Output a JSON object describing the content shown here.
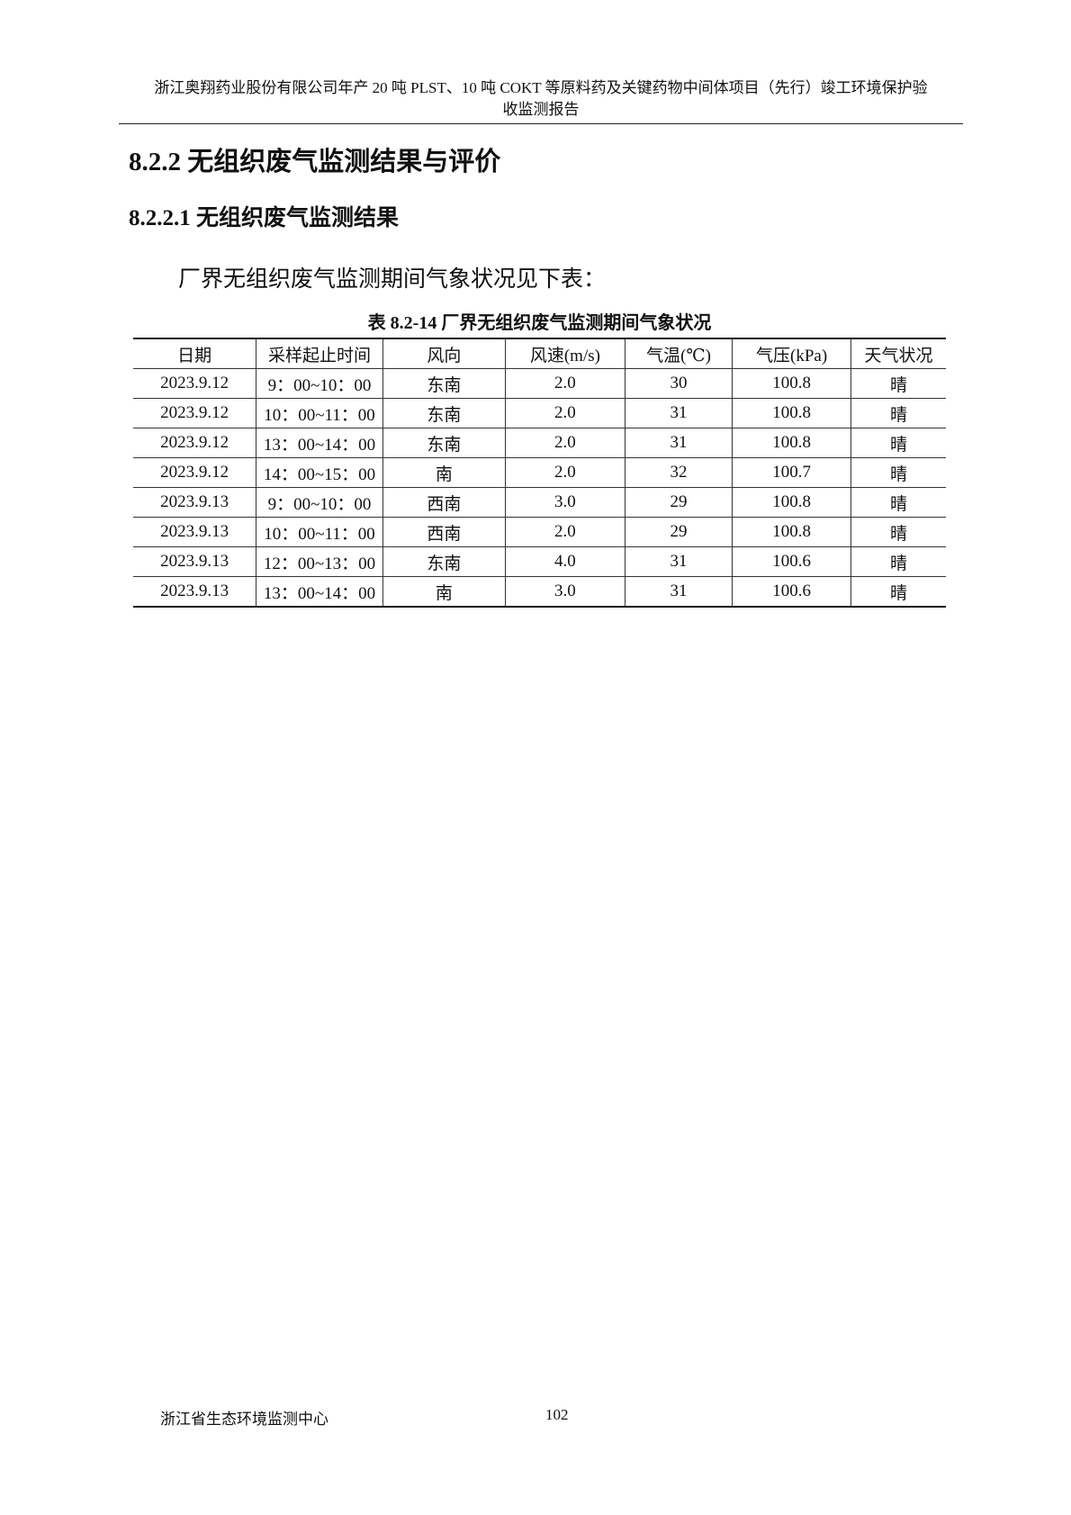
{
  "header": {
    "line1": "浙江奥翔药业股份有限公司年产 20 吨 PLST、10 吨 COKT 等原料药及关键药物中间体项目（先行）竣工环境保护验",
    "line2": "收监测报告"
  },
  "section_title": "8.2.2  无组织废气监测结果与评价",
  "subsection_title": "8.2.2.1  无组织废气监测结果",
  "paragraph": "厂界无组织废气监测期间气象状况见下表：",
  "table": {
    "caption": "表 8.2-14  厂界无组织废气监测期间气象状况",
    "columns": [
      "日期",
      "采样起止时间",
      "风向",
      "风速(m/s)",
      "气温(℃)",
      "气压(kPa)",
      "天气状况"
    ],
    "rows": [
      [
        "2023.9.12",
        "9：00~10：00",
        "东南",
        "2.0",
        "30",
        "100.8",
        "晴"
      ],
      [
        "2023.9.12",
        "10：00~11：00",
        "东南",
        "2.0",
        "31",
        "100.8",
        "晴"
      ],
      [
        "2023.9.12",
        "13：00~14：00",
        "东南",
        "2.0",
        "31",
        "100.8",
        "晴"
      ],
      [
        "2023.9.12",
        "14：00~15：00",
        "南",
        "2.0",
        "32",
        "100.7",
        "晴"
      ],
      [
        "2023.9.13",
        "9：00~10：00",
        "西南",
        "3.0",
        "29",
        "100.8",
        "晴"
      ],
      [
        "2023.9.13",
        "10：00~11：00",
        "西南",
        "2.0",
        "29",
        "100.8",
        "晴"
      ],
      [
        "2023.9.13",
        "12：00~13：00",
        "东南",
        "4.0",
        "31",
        "100.6",
        "晴"
      ],
      [
        "2023.9.13",
        "13：00~14：00",
        "南",
        "3.0",
        "31",
        "100.6",
        "晴"
      ]
    ]
  },
  "footer": {
    "org": "浙江省生态环境监测中心",
    "page": "102"
  }
}
